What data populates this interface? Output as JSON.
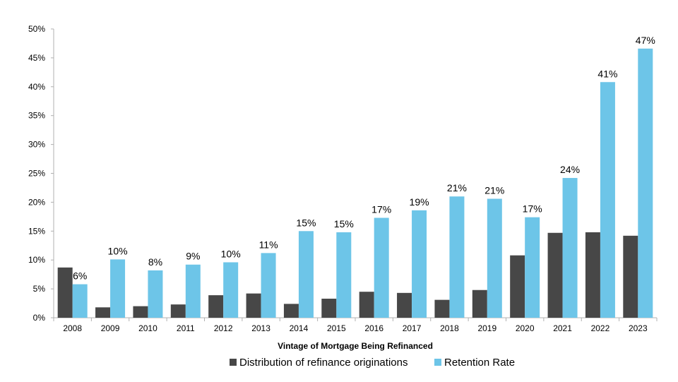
{
  "chart_data": {
    "type": "bar",
    "title": "",
    "xlabel": "Vintage of Mortgage Being Refinanced",
    "ylabel": "",
    "ylim": [
      0,
      50
    ],
    "y_ticks": [
      "0%",
      "5%",
      "10%",
      "15%",
      "20%",
      "25%",
      "30%",
      "35%",
      "40%",
      "45%",
      "50%"
    ],
    "categories": [
      "2008",
      "2009",
      "2010",
      "2011",
      "2012",
      "2013",
      "2014",
      "2015",
      "2016",
      "2017",
      "2018",
      "2019",
      "2020",
      "2021",
      "2022",
      "2023"
    ],
    "series": [
      {
        "name": "Distribution of refinance originations",
        "color": "#474747",
        "values": [
          8.7,
          1.8,
          2.0,
          2.3,
          3.9,
          4.2,
          2.4,
          3.3,
          4.5,
          4.3,
          3.1,
          4.8,
          10.8,
          14.7,
          14.8,
          14.2
        ]
      },
      {
        "name": "Retention Rate",
        "color": "#6DC5E8",
        "values": [
          5.8,
          10.1,
          8.2,
          9.2,
          9.6,
          11.2,
          15.0,
          14.8,
          17.3,
          18.6,
          21.0,
          20.6,
          17.4,
          24.2,
          40.8,
          46.6
        ],
        "data_labels": [
          "6%",
          "10%",
          "8%",
          "9%",
          "10%",
          "11%",
          "15%",
          "15%",
          "17%",
          "19%",
          "21%",
          "21%",
          "17%",
          "24%",
          "41%",
          "47%"
        ]
      }
    ],
    "grid": false,
    "legend": "bottom"
  }
}
